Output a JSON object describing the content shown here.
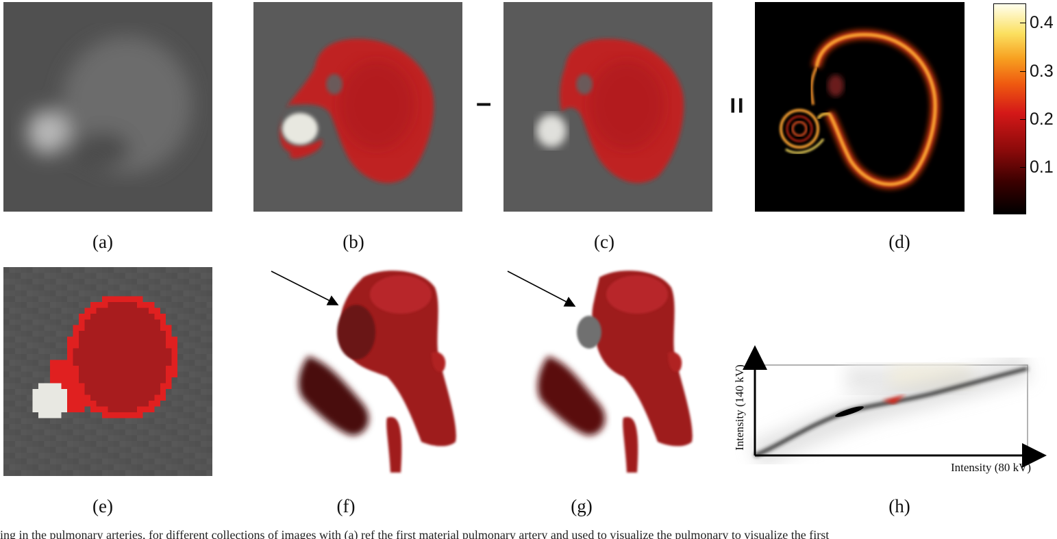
{
  "captions": {
    "a": "(a)",
    "b": "(b)",
    "c": "(c)",
    "d": "(d)",
    "e": "(e)",
    "f": "(f)",
    "g": "(g)",
    "h": "(h)"
  },
  "operators": {
    "minus": "–",
    "equals": "="
  },
  "colorbar": {
    "ticks": [
      "0.4",
      "0.3",
      "0.2",
      "0.1"
    ],
    "colormap": [
      "#000000",
      "#8a0a0a",
      "#d41818",
      "#f7a020",
      "#ffffee"
    ]
  },
  "plot_h": {
    "xlabel": "Intensity (80 kV)",
    "ylabel": "Intensity (140 kV)"
  },
  "footer_text": "ing in the pulmonary arteries, for different collections of images with (a) ref the first material pulmonary artery and used to visualize the pulmonary to visualize the first"
}
